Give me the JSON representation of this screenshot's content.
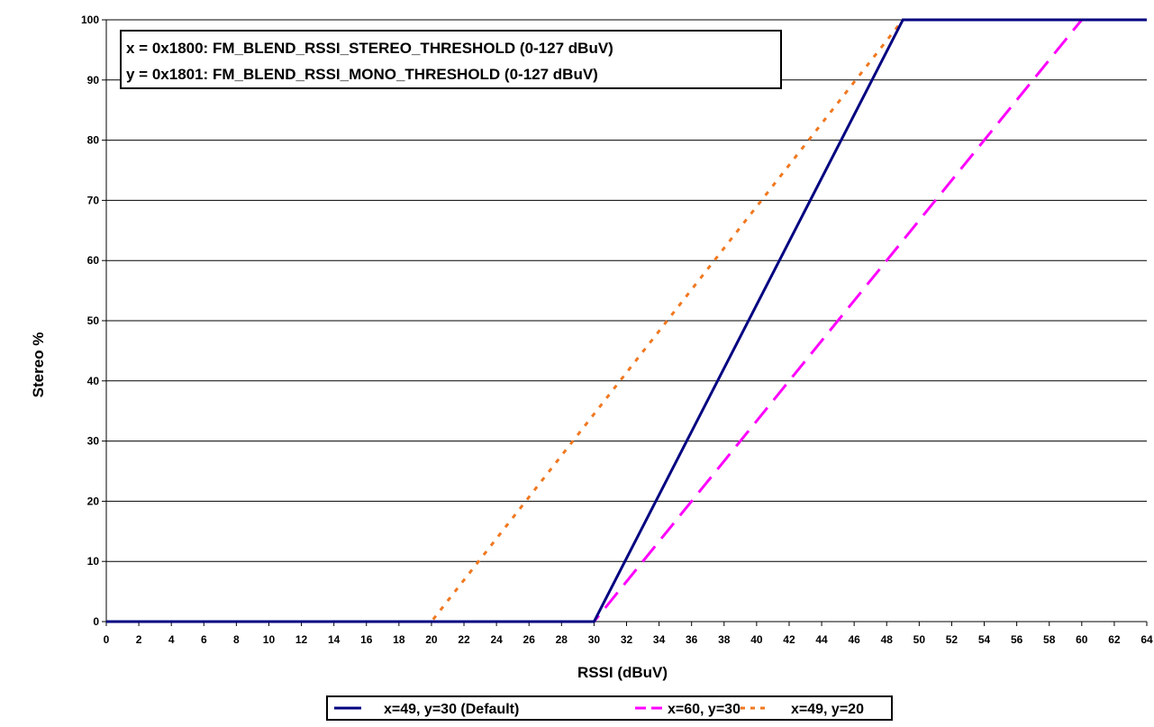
{
  "chart_data": {
    "type": "line",
    "title": "",
    "xlabel": "RSSI (dBuV)",
    "ylabel": "Stereo %",
    "xlim": [
      0,
      64
    ],
    "ylim": [
      0,
      100
    ],
    "x_ticks": [
      0,
      2,
      4,
      6,
      8,
      10,
      12,
      14,
      16,
      18,
      20,
      22,
      24,
      26,
      28,
      30,
      32,
      34,
      36,
      38,
      40,
      42,
      44,
      46,
      48,
      50,
      52,
      54,
      56,
      58,
      60,
      62,
      64
    ],
    "y_ticks": [
      0,
      10,
      20,
      30,
      40,
      50,
      60,
      70,
      80,
      90,
      100
    ],
    "grid": "horizontal",
    "legend_position": "bottom",
    "annotations": [
      "x = 0x1800: FM_BLEND_RSSI_STEREO_THRESHOLD (0-127 dBuV)",
      "y = 0x1801: FM_BLEND_RSSI_MONO_THRESHOLD (0-127 dBuV)"
    ],
    "series": [
      {
        "name": "x=49, y=30 (Default)",
        "color": "#000080",
        "style": "solid",
        "points": [
          [
            0,
            0
          ],
          [
            30,
            0
          ],
          [
            49,
            100
          ],
          [
            64,
            100
          ]
        ]
      },
      {
        "name": "x=60, y=30",
        "color": "#FF00FF",
        "style": "dashed",
        "points": [
          [
            0,
            0
          ],
          [
            30,
            0
          ],
          [
            60,
            100
          ],
          [
            64,
            100
          ]
        ]
      },
      {
        "name": "x=49, y=20",
        "color": "#F07820",
        "style": "dotted",
        "points": [
          [
            0,
            0
          ],
          [
            20,
            0
          ],
          [
            49,
            100
          ],
          [
            64,
            100
          ]
        ]
      }
    ]
  }
}
